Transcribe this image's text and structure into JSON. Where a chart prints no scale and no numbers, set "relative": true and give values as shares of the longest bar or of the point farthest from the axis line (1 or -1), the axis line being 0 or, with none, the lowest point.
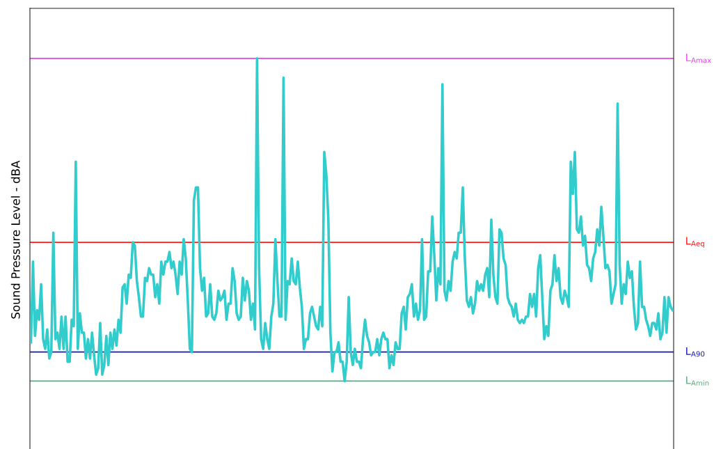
{
  "chart_data": {
    "type": "line",
    "relative": true,
    "ylabel": "Sound Pressure Level - dBA",
    "grid": false,
    "legend": false,
    "marker": "none",
    "line_style": "solid",
    "categories": [
      null,
      null,
      null,
      null,
      null,
      null,
      null,
      null,
      null,
      null,
      null,
      null,
      null,
      null,
      null,
      null,
      null,
      null,
      null,
      null,
      null,
      null,
      null,
      null,
      null,
      null,
      null,
      null,
      null,
      null,
      null,
      null,
      null,
      null,
      null,
      null,
      null,
      null,
      null,
      null,
      null,
      null,
      null,
      null,
      null,
      null,
      null,
      null,
      null,
      null,
      null,
      null,
      null,
      null,
      null,
      null,
      null,
      null,
      null,
      null,
      null,
      null,
      null,
      null,
      null,
      null,
      null,
      null,
      null,
      null,
      null,
      null,
      null,
      null,
      null,
      null,
      null,
      null,
      null,
      null,
      null,
      null,
      null,
      null,
      null,
      null,
      null,
      null,
      null,
      null,
      null,
      null,
      null,
      null,
      null,
      null,
      null,
      null,
      null,
      null,
      null,
      null,
      null,
      null,
      null,
      null,
      null,
      null,
      null,
      null,
      null,
      null,
      null,
      null,
      null,
      null,
      null,
      null,
      null,
      null,
      null,
      null,
      null,
      null,
      null,
      null,
      null,
      null,
      null,
      null,
      null,
      null,
      null,
      null,
      null,
      null,
      null,
      null,
      null,
      null,
      null,
      null,
      null,
      null,
      null,
      null,
      null,
      null,
      null,
      null,
      null,
      null,
      null,
      null,
      null,
      null,
      null,
      null,
      null,
      null,
      null,
      null,
      null,
      null,
      null,
      null,
      null,
      null,
      null,
      null,
      null,
      null,
      null,
      null,
      null,
      null,
      null,
      null,
      null,
      null,
      null,
      null,
      null,
      null,
      null,
      null,
      null,
      null,
      null,
      null,
      null,
      null,
      null,
      null,
      null,
      null,
      null,
      null,
      null,
      null,
      null,
      null,
      null,
      null,
      null,
      null,
      null,
      null,
      null,
      null,
      null,
      null,
      null,
      null,
      null,
      null,
      null,
      null,
      null,
      null,
      null,
      null,
      null,
      null,
      null,
      null,
      null,
      null,
      null,
      null,
      null,
      null,
      null,
      null,
      null,
      null,
      null,
      null,
      null,
      null,
      null,
      null,
      null,
      null,
      null,
      null,
      null,
      null,
      null,
      null,
      null,
      null,
      null,
      null,
      null,
      null,
      null,
      null,
      null,
      null,
      null,
      null,
      null,
      null,
      null,
      null,
      null,
      null,
      null,
      null,
      null,
      null,
      null,
      null,
      null,
      null,
      null,
      null,
      null,
      null,
      null,
      null,
      null,
      null,
      null,
      null,
      null,
      null,
      null,
      null,
      null,
      null,
      null,
      null,
      null,
      null,
      null,
      null,
      null,
      null,
      null,
      null,
      null,
      null,
      null,
      null,
      null,
      null,
      null,
      null,
      null,
      null,
      null,
      null,
      null,
      null
    ],
    "series": [
      {
        "color": "#33cccc",
        "values": [
          0.12,
          0.37,
          0.14,
          0.22,
          0.19,
          0.3,
          0.13,
          0.1,
          0.16,
          0.07,
          0.09,
          0.46,
          0.13,
          0.15,
          0.1,
          0.2,
          0.1,
          0.2,
          0.06,
          0.06,
          0.19,
          0.17,
          0.68,
          0.1,
          0.21,
          0.15,
          0.15,
          0.07,
          0.13,
          0.07,
          0.15,
          0.08,
          0.02,
          0.04,
          0.18,
          0.02,
          0.05,
          0.14,
          0.05,
          0.15,
          0.1,
          0.16,
          0.11,
          0.19,
          0.15,
          0.29,
          0.3,
          0.24,
          0.33,
          0.32,
          0.43,
          0.42,
          0.31,
          0.26,
          0.2,
          0.2,
          0.32,
          0.31,
          0.35,
          0.33,
          0.33,
          0.26,
          0.3,
          0.24,
          0.37,
          0.33,
          0.37,
          0.37,
          0.4,
          0.35,
          0.37,
          0.33,
          0.27,
          0.37,
          0.33,
          0.44,
          0.38,
          0.25,
          0.1,
          0.09,
          0.56,
          0.6,
          0.6,
          0.35,
          0.28,
          0.32,
          0.2,
          0.21,
          0.3,
          0.2,
          0.19,
          0.21,
          0.28,
          0.25,
          0.26,
          0.28,
          0.19,
          0.24,
          0.24,
          0.35,
          0.31,
          0.21,
          0.19,
          0.2,
          0.32,
          0.25,
          0.31,
          0.28,
          0.19,
          0.24,
          0.16,
          1.0,
          0.35,
          0.13,
          0.1,
          0.18,
          0.13,
          0.1,
          0.2,
          0.24,
          0.44,
          0.31,
          0.2,
          0.2,
          0.94,
          0.19,
          0.31,
          0.3,
          0.38,
          0.31,
          0.3,
          0.37,
          0.29,
          0.23,
          0.1,
          0.13,
          0.13,
          0.21,
          0.23,
          0.2,
          0.17,
          0.16,
          0.23,
          0.17,
          0.71,
          0.64,
          0.5,
          0.15,
          0.03,
          0.09,
          0.09,
          0.12,
          0.06,
          0.06,
          0,
          0.06,
          0.26,
          0.09,
          0.05,
          0.1,
          0.06,
          0.06,
          0.04,
          0.13,
          0.19,
          0.14,
          0.12,
          0.08,
          0.09,
          0.09,
          0.13,
          0.08,
          0.13,
          0.15,
          0.13,
          0.13,
          0.04,
          0.08,
          0.05,
          0.12,
          0.1,
          0.1,
          0.21,
          0.23,
          0.16,
          0.26,
          0.27,
          0.3,
          0.2,
          0.24,
          0.19,
          0.22,
          0.44,
          0.19,
          0.2,
          0.34,
          0.34,
          0.51,
          0.39,
          0.25,
          0.35,
          0.3,
          0.92,
          0.28,
          0.25,
          0.31,
          0.28,
          0.37,
          0.4,
          0.38,
          0.46,
          0.46,
          0.6,
          0.38,
          0.25,
          0.23,
          0.26,
          0.21,
          0.24,
          0.31,
          0.28,
          0.3,
          0.28,
          0.33,
          0.35,
          0.26,
          0.5,
          0.33,
          0.26,
          0.24,
          0.47,
          0.46,
          0.38,
          0.36,
          0.26,
          0.24,
          0.23,
          0.2,
          0.24,
          0.19,
          0.18,
          0.19,
          0.18,
          0.2,
          0.2,
          0.27,
          0.23,
          0.27,
          0.2,
          0.35,
          0.39,
          0.26,
          0.13,
          0.17,
          0.14,
          0.28,
          0.3,
          0.39,
          0.31,
          0.35,
          0.26,
          0.24,
          0.28,
          0.26,
          0.23,
          0.68,
          0.58,
          0.71,
          0.47,
          0.46,
          0.51,
          0.42,
          0.45,
          0.36,
          0.35,
          0.31,
          0.38,
          0.4,
          0.47,
          0.42,
          0.54,
          0.45,
          0.35,
          0.36,
          0.34,
          0.24,
          0.27,
          0.3,
          0.86,
          0.36,
          0.24,
          0.3,
          0.27,
          0.37,
          0.32,
          0.34,
          0.23,
          0.16,
          0.18,
          0.37,
          0.23,
          0.23,
          0.19,
          0.17,
          0.14,
          0.18,
          0.18,
          0.16,
          0.21,
          0.13,
          0.15,
          0.26,
          0.15,
          0.26,
          0.23,
          0.22
        ]
      }
    ],
    "ref_lines": [
      {
        "axis": "y",
        "value": 1.0,
        "label": "L$_{Amax}$",
        "color": "#f03cf0"
      },
      {
        "axis": "y",
        "value": 0.43,
        "label": "L$_{Aeq}$",
        "color": "#ff1a1a"
      },
      {
        "axis": "y",
        "value": 0.09,
        "label": "L$_{A90}$",
        "color": "#1515c8"
      },
      {
        "axis": "y",
        "value": 0,
        "label": "L$_{Amin}$",
        "color": "#5aaa80"
      }
    ]
  }
}
